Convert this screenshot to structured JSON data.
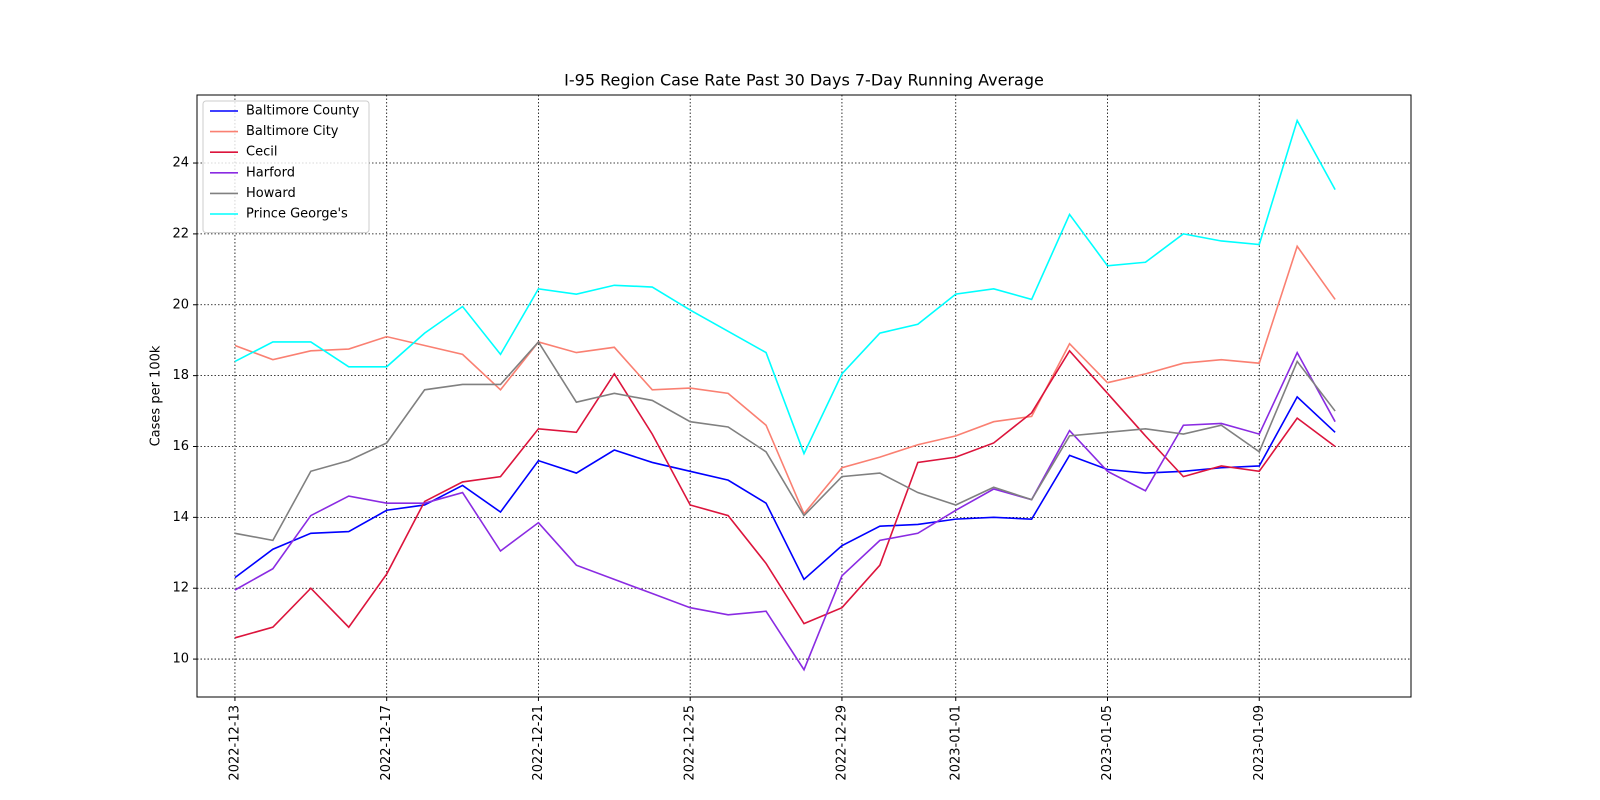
{
  "chart_data": {
    "type": "line",
    "title": "I-95 Region Case Rate  Past 30 Days 7-Day Running Average",
    "y_label": "Cases per 100k",
    "x": [
      "2022-12-13",
      "2022-12-14",
      "2022-12-15",
      "2022-12-16",
      "2022-12-17",
      "2022-12-18",
      "2022-12-19",
      "2022-12-20",
      "2022-12-21",
      "2022-12-22",
      "2022-12-23",
      "2022-12-24",
      "2022-12-25",
      "2022-12-26",
      "2022-12-27",
      "2022-12-28",
      "2022-12-29",
      "2022-12-30",
      "2022-12-31",
      "2023-01-01",
      "2023-01-02",
      "2023-01-03",
      "2023-01-04",
      "2023-01-05",
      "2023-01-06",
      "2023-01-07",
      "2023-01-08",
      "2023-01-09",
      "2023-01-10",
      "2023-01-11"
    ],
    "series": [
      {
        "name": "Baltimore County",
        "color": "#0000ff",
        "values": [
          12.3,
          13.1,
          13.55,
          13.6,
          14.2,
          14.35,
          14.9,
          14.15,
          15.6,
          15.25,
          15.9,
          15.55,
          15.3,
          15.05,
          14.4,
          12.25,
          13.2,
          13.75,
          13.8,
          13.95,
          14.0,
          13.95,
          15.75,
          15.35,
          15.25,
          15.3,
          15.4,
          15.45,
          17.4,
          16.4
        ]
      },
      {
        "name": "Baltimore City",
        "color": "#fa8072",
        "values": [
          18.85,
          18.45,
          18.7,
          18.75,
          19.1,
          18.85,
          18.6,
          17.6,
          18.95,
          18.65,
          18.8,
          17.6,
          17.65,
          17.5,
          16.6,
          14.1,
          15.4,
          15.7,
          16.05,
          16.3,
          16.7,
          16.85,
          18.9,
          17.8,
          18.05,
          18.35,
          18.45,
          18.35,
          21.65,
          20.15
        ]
      },
      {
        "name": "Cecil",
        "color": "#dc143c",
        "values": [
          10.6,
          10.9,
          12.0,
          10.9,
          12.4,
          14.45,
          15.0,
          15.15,
          16.5,
          16.4,
          18.05,
          16.35,
          14.35,
          14.05,
          12.7,
          11.0,
          11.45,
          12.65,
          15.55,
          15.7,
          16.1,
          16.95,
          18.7,
          17.5,
          16.3,
          15.15,
          15.45,
          15.3,
          16.8,
          16.0
        ]
      },
      {
        "name": "Harford",
        "color": "#8a2be2",
        "values": [
          11.95,
          12.55,
          14.05,
          14.6,
          14.4,
          14.4,
          14.7,
          13.05,
          13.85,
          12.65,
          12.25,
          11.85,
          11.45,
          11.25,
          11.35,
          9.7,
          12.35,
          13.35,
          13.55,
          14.2,
          14.8,
          14.5,
          16.45,
          15.3,
          14.75,
          16.6,
          16.65,
          16.35,
          18.65,
          16.7
        ]
      },
      {
        "name": "Howard",
        "color": "#808080",
        "values": [
          13.55,
          13.35,
          15.3,
          15.6,
          16.1,
          17.6,
          17.75,
          17.75,
          18.95,
          17.25,
          17.5,
          17.3,
          16.7,
          16.55,
          15.85,
          14.05,
          15.15,
          15.25,
          14.7,
          14.35,
          14.85,
          14.5,
          16.3,
          16.4,
          16.5,
          16.35,
          16.6,
          15.85,
          18.4,
          17.0
        ]
      },
      {
        "name": "Prince George's",
        "color": "#00ffff",
        "values": [
          18.4,
          18.95,
          18.95,
          18.25,
          18.25,
          19.2,
          19.95,
          18.6,
          20.45,
          20.3,
          20.55,
          20.5,
          19.85,
          19.25,
          18.65,
          15.8,
          18.05,
          19.2,
          19.45,
          20.3,
          20.45,
          20.15,
          22.55,
          21.1,
          21.2,
          22.0,
          21.8,
          21.7,
          25.2,
          23.25
        ]
      }
    ],
    "xlim": [
      "2022-12-12",
      "2023-01-13"
    ],
    "xticks": [
      "2022-12-13",
      "2022-12-17",
      "2022-12-21",
      "2022-12-25",
      "2022-12-29",
      "2023-01-01",
      "2023-01-05",
      "2023-01-09"
    ],
    "ylim": [
      8.93,
      25.92
    ],
    "yticks": [
      10,
      12,
      14,
      16,
      18,
      20,
      22,
      24
    ],
    "grid": true,
    "legend": "upper-left"
  }
}
